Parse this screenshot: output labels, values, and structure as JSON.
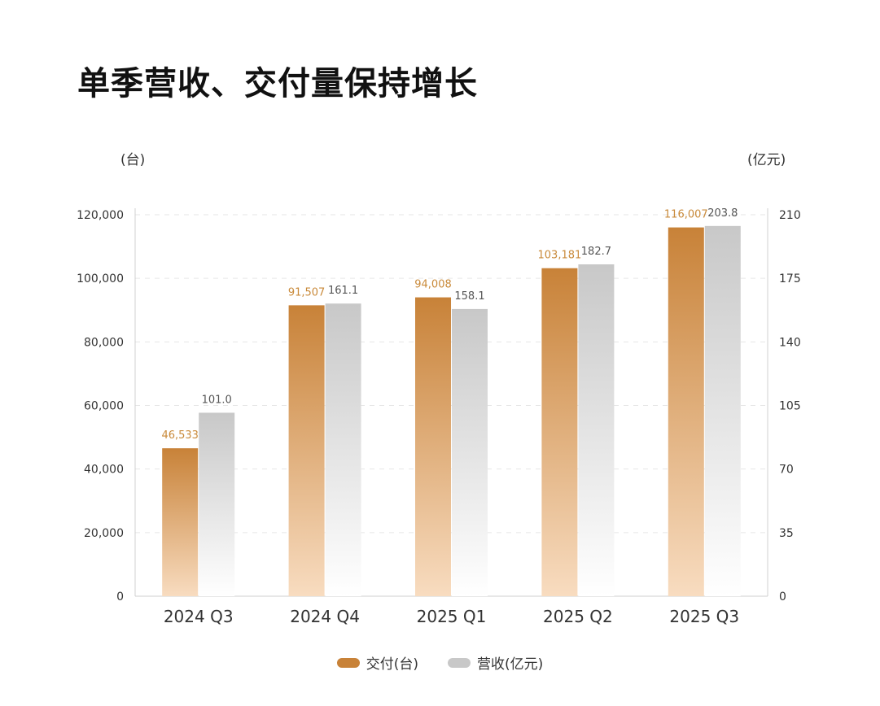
{
  "page_title": "单季营收、交付量保持增长",
  "colors": {
    "delivery_top": "#c88238",
    "delivery_bottom": "#f8dcc0",
    "revenue_top": "#c8c8c8",
    "revenue_bottom": "#ffffff",
    "delivery_label": "#c98a3a",
    "revenue_label": "#555555"
  },
  "chart_data": {
    "type": "bar",
    "categories": [
      "2024 Q3",
      "2024 Q4",
      "2025 Q1",
      "2025 Q2",
      "2025 Q3"
    ],
    "series": [
      {
        "name": "交付(台)",
        "axis": "left",
        "values": [
          46533,
          91507,
          94008,
          103181,
          116007
        ],
        "labels": [
          "46,533",
          "91,507",
          "94,008",
          "103,181",
          "116,007"
        ]
      },
      {
        "name": "营收(亿元)",
        "axis": "right",
        "values": [
          101.0,
          161.1,
          158.1,
          182.7,
          203.8
        ],
        "labels": [
          "101.0",
          "161.1",
          "158.1",
          "182.7",
          "203.8"
        ]
      }
    ],
    "left_axis": {
      "unit": "(台)",
      "range": [
        0,
        120000
      ],
      "ticks": [
        "0",
        "20,000",
        "40,000",
        "60,000",
        "80,000",
        "100,000",
        "120,000"
      ]
    },
    "right_axis": {
      "unit": "(亿元)",
      "range": [
        0,
        210
      ],
      "ticks": [
        "0",
        "35",
        "70",
        "105",
        "140",
        "175",
        "210"
      ]
    },
    "legend": [
      "交付(台)",
      "营收(亿元)"
    ],
    "legend_position": "bottom-center",
    "grid": true
  }
}
